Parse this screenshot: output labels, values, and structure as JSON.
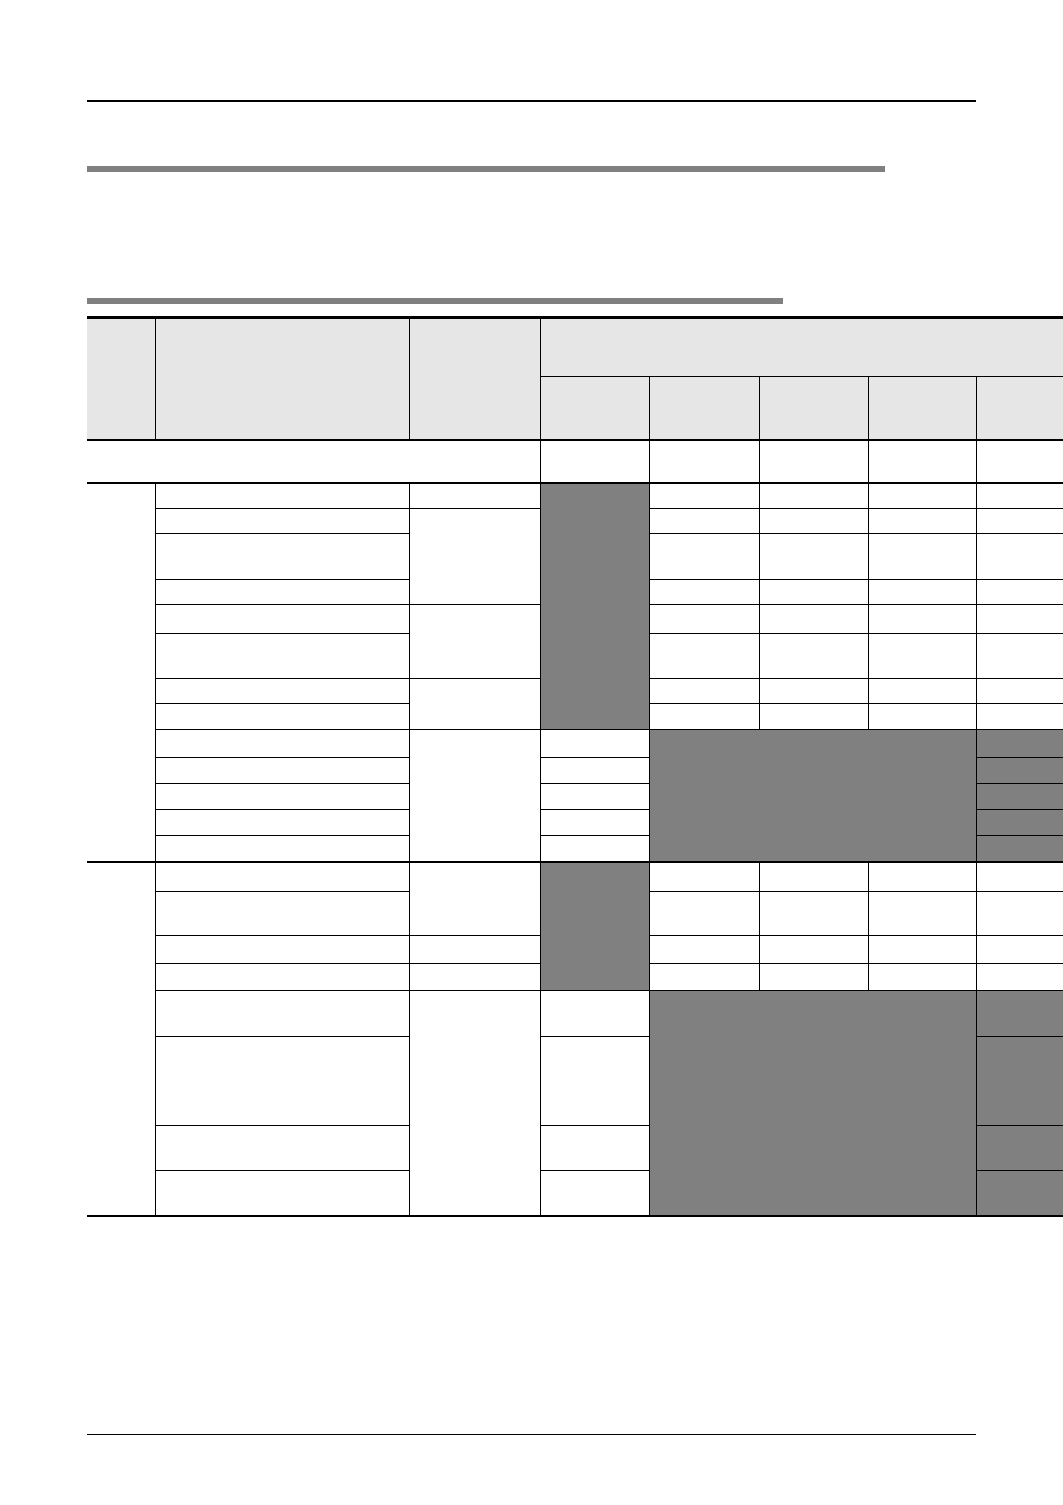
{
  "colors": {
    "header_fill": "#e6e6e6",
    "shaded_fill": "#808080",
    "rule": "#000000",
    "section_bar": "#808080"
  },
  "table": {
    "sections": 2,
    "shaded_cells_meaning": "not-applicable"
  }
}
